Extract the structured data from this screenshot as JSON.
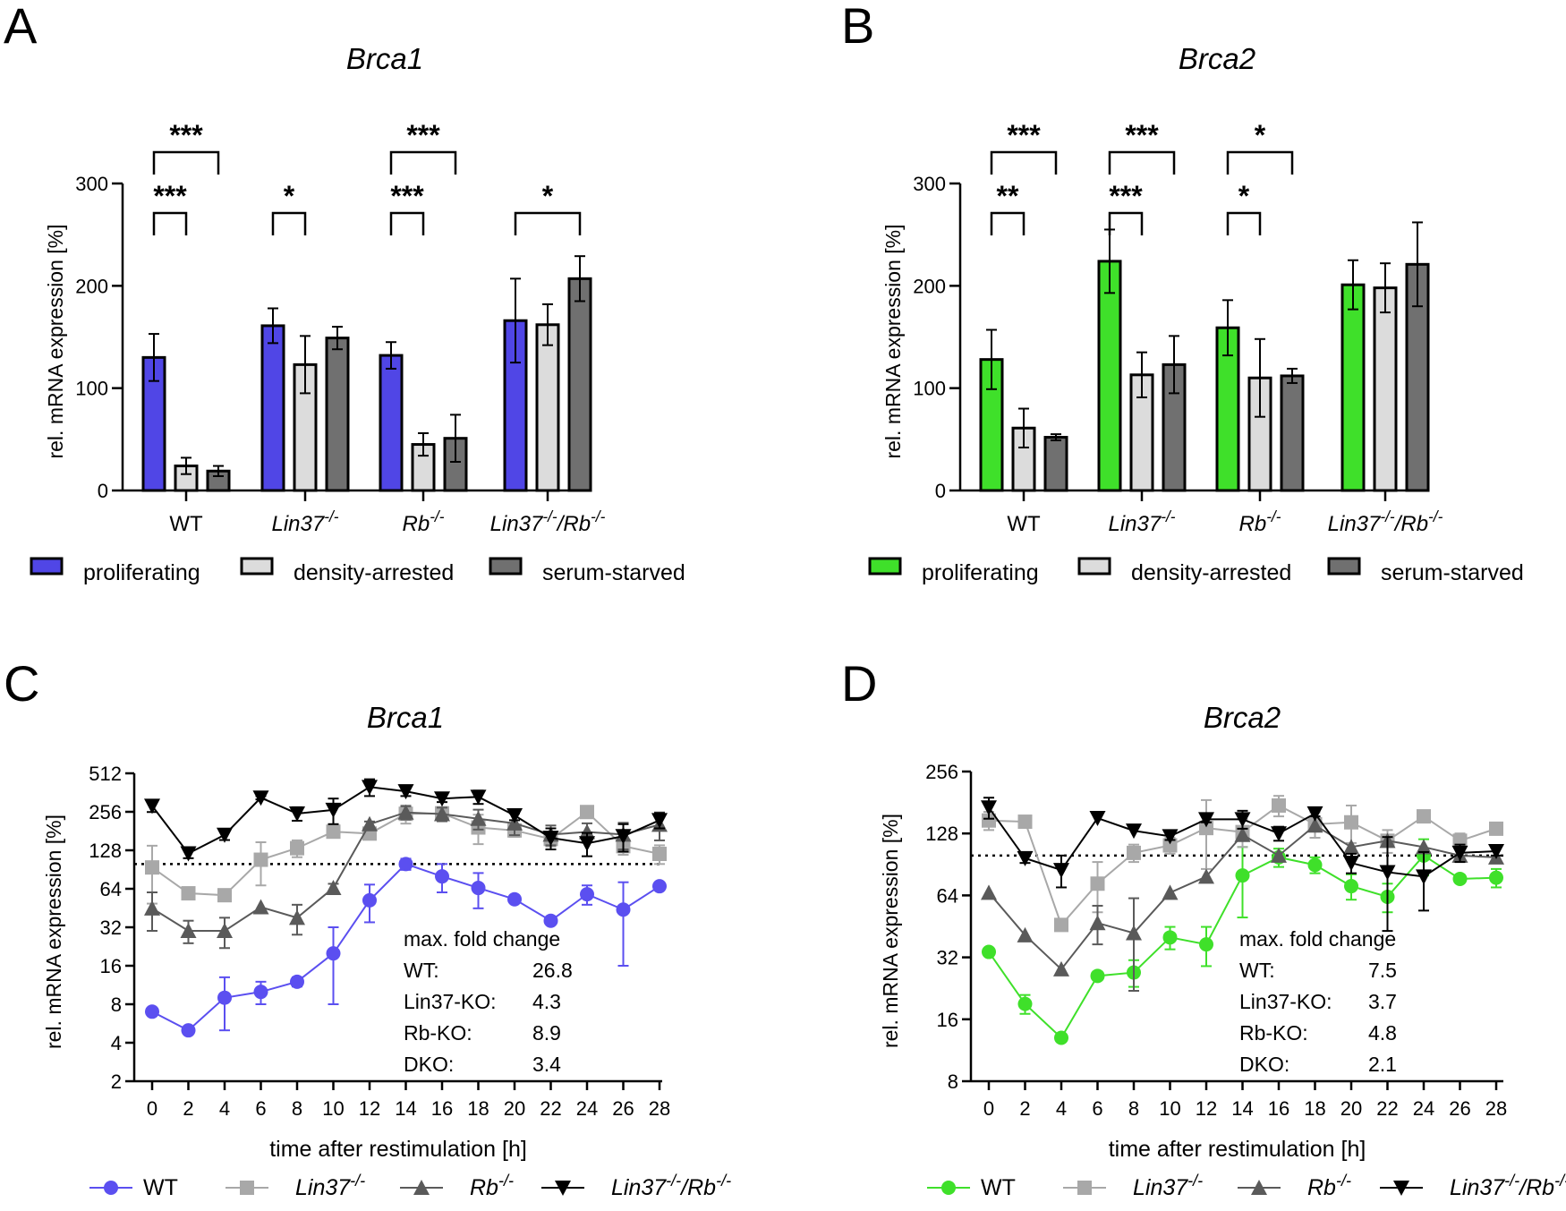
{
  "panels": [
    {
      "letter": "A",
      "chart_data": {
        "type": "bar",
        "title": "Brca1",
        "ylabel": "rel. mRNA expression [%]",
        "xlabel": "",
        "ylim": [
          0,
          300
        ],
        "yticks": [
          "0",
          "100",
          "200",
          "300"
        ],
        "categories": [
          "WT",
          "Lin37",
          "Rb",
          "Lin37/Rb"
        ],
        "category_labels": [
          {
            "base": "WT",
            "sup": ""
          },
          {
            "base": "Lin37",
            "sup": "-/-"
          },
          {
            "base": "Rb",
            "sup": "-/-"
          },
          {
            "base": "Lin37",
            "sup": "-/-",
            "base2": "/Rb",
            "sup2": "-/-"
          }
        ],
        "series": [
          {
            "name": "proliferating",
            "color": "#5046e6",
            "values": [
              130,
              161,
              132,
              166
            ],
            "errors": [
              23,
              17,
              13,
              41
            ]
          },
          {
            "name": "density-arrested",
            "color": "#dcdcdc",
            "values": [
              24,
              123,
              45,
              162
            ],
            "errors": [
              8,
              28,
              11,
              20
            ]
          },
          {
            "name": "serum-starved",
            "color": "#707070",
            "values": [
              19,
              149,
              51,
              207
            ],
            "errors": [
              5,
              11,
              23,
              22
            ]
          }
        ],
        "significance": [
          {
            "group": 0,
            "from": 0,
            "to": 2,
            "label": "***",
            "level": 2
          },
          {
            "group": 0,
            "from": 0,
            "to": 1,
            "label": "***",
            "level": 1
          },
          {
            "group": 1,
            "from": 0,
            "to": 1,
            "label": "*",
            "level": 1
          },
          {
            "group": 2,
            "from": 0,
            "to": 2,
            "label": "***",
            "level": 2
          },
          {
            "group": 2,
            "from": 0,
            "to": 1,
            "label": "***",
            "level": 1
          },
          {
            "group": 3,
            "from": 0,
            "to": 2,
            "label": "*",
            "level": 1
          }
        ]
      }
    },
    {
      "letter": "B",
      "chart_data": {
        "type": "bar",
        "title": "Brca2",
        "ylabel": "rel. mRNA expression [%]",
        "xlabel": "",
        "ylim": [
          0,
          300
        ],
        "yticks": [
          "0",
          "100",
          "200",
          "300"
        ],
        "categories": [
          "WT",
          "Lin37",
          "Rb",
          "Lin37/Rb"
        ],
        "category_labels": [
          {
            "base": "WT",
            "sup": ""
          },
          {
            "base": "Lin37",
            "sup": "-/-"
          },
          {
            "base": "Rb",
            "sup": "-/-"
          },
          {
            "base": "Lin37",
            "sup": "-/-",
            "base2": "/Rb",
            "sup2": "-/-"
          }
        ],
        "series": [
          {
            "name": "proliferating",
            "color": "#3fe02a",
            "values": [
              128,
              224,
              159,
              201
            ],
            "errors": [
              29,
              31,
              27,
              24
            ]
          },
          {
            "name": "density-arrested",
            "color": "#dcdcdc",
            "values": [
              61,
              113,
              110,
              198
            ],
            "errors": [
              19,
              22,
              38,
              24
            ]
          },
          {
            "name": "serum-starved",
            "color": "#707070",
            "values": [
              52,
              123,
              112,
              221
            ],
            "errors": [
              3,
              28,
              7,
              41
            ]
          }
        ],
        "significance": [
          {
            "group": 0,
            "from": 0,
            "to": 2,
            "label": "***",
            "level": 2
          },
          {
            "group": 0,
            "from": 0,
            "to": 1,
            "label": "**",
            "level": 1
          },
          {
            "group": 1,
            "from": 0,
            "to": 2,
            "label": "***",
            "level": 2
          },
          {
            "group": 1,
            "from": 0,
            "to": 1,
            "label": "***",
            "level": 1
          },
          {
            "group": 2,
            "from": 0,
            "to": 2,
            "label": "*",
            "level": 2
          },
          {
            "group": 2,
            "from": 0,
            "to": 1,
            "label": "*",
            "level": 1
          }
        ]
      }
    },
    {
      "letter": "C",
      "chart_data": {
        "type": "line",
        "title": "Brca1",
        "ylabel": "rel. mRNA expression [%]",
        "xlabel": "time after restimulation [h]",
        "yscale": "log2",
        "ylim": [
          2,
          512
        ],
        "yticks": [
          2,
          4,
          8,
          16,
          32,
          64,
          128,
          256,
          512
        ],
        "x": [
          0,
          2,
          4,
          6,
          8,
          10,
          12,
          14,
          16,
          18,
          20,
          22,
          24,
          26,
          28
        ],
        "reference_line": 100,
        "series": [
          {
            "name": "WT",
            "label_base": "WT",
            "label_sup": "",
            "marker": "circle",
            "color": "#5b4ff0",
            "values": [
              7,
              5,
              9,
              10,
              12,
              20,
              52,
              100,
              80,
              65,
              53,
              36,
              58,
              44,
              67
            ],
            "errors": [
              0,
              0,
              4,
              2,
              1,
              12,
              17,
              10,
              20,
              20,
              0,
              0,
              10,
              28,
              0
            ]
          },
          {
            "name": "Lin37-/-",
            "label_base": "Lin37",
            "label_sup": "-/-",
            "marker": "square",
            "color": "#a8a8a8",
            "values": [
              94,
              59,
              57,
              108,
              133,
              179,
              173,
              247,
              249,
              193,
              183,
              157,
              255,
              138,
              120
            ],
            "errors": [
              45,
              5,
              5,
              40,
              20,
              10,
              10,
              40,
              30,
              50,
              20,
              20,
              0,
              20,
              20
            ]
          },
          {
            "name": "Rb-/-",
            "label_base": "Rb",
            "label_sup": "-/-",
            "marker": "triangle-up",
            "color": "#5a5a5a",
            "values": [
              45,
              30,
              30,
              46,
              38,
              65,
              205,
              253,
              246,
              226,
              208,
              170,
              178,
              170,
              203
            ],
            "errors": [
              15,
              6,
              8,
              0,
              10,
              5,
              10,
              30,
              30,
              40,
              40,
              30,
              30,
              40,
              50
            ]
          },
          {
            "name": "Lin37-/-/Rb-/-",
            "label_base": "Lin37",
            "label_sup": "-/-",
            "label_base2": "/Rb",
            "label_sup2": "-/-",
            "marker": "triangle-down",
            "color": "#000000",
            "values": [
              285,
              121,
              169,
              330,
              248,
              265,
              400,
              370,
              325,
              335,
              240,
              160,
              145,
              165,
              220
            ],
            "errors": [
              30,
              10,
              15,
              10,
              30,
              60,
              60,
              30,
              20,
              40,
              20,
              30,
              30,
              40,
              30
            ]
          }
        ],
        "annotation": {
          "heading": "max. fold change",
          "rows": [
            [
              "WT:",
              "26.8"
            ],
            [
              "Lin37-KO:",
              "4.3"
            ],
            [
              "Rb-KO:",
              "8.9"
            ],
            [
              "DKO:",
              "3.4"
            ]
          ]
        }
      }
    },
    {
      "letter": "D",
      "chart_data": {
        "type": "line",
        "title": "Brca2",
        "ylabel": "rel. mRNA expression [%]",
        "xlabel": "time after restimulation [h]",
        "yscale": "log2",
        "ylim": [
          8,
          256
        ],
        "yticks": [
          8,
          16,
          32,
          64,
          128,
          256
        ],
        "x": [
          0,
          2,
          4,
          6,
          8,
          10,
          12,
          14,
          16,
          18,
          20,
          22,
          24,
          26,
          28
        ],
        "reference_line": 100,
        "series": [
          {
            "name": "WT",
            "label_base": "WT",
            "label_sup": "",
            "marker": "circle",
            "color": "#3fe02a",
            "values": [
              34,
              19,
              13,
              26,
              27,
              40,
              37,
              80,
              98,
              90,
              71,
              63,
              100,
              77,
              78
            ],
            "errors": [
              0,
              2,
              0,
              0,
              4,
              5,
              8,
              30,
              10,
              8,
              10,
              10,
              20,
              0,
              8
            ]
          },
          {
            "name": "Lin37-/-",
            "label_base": "Lin37",
            "label_sup": "-/-",
            "marker": "square",
            "color": "#a8a8a8",
            "values": [
              148,
              146,
              46,
              73,
              103,
              112,
              136,
              130,
              175,
              142,
              145,
              118,
              155,
              118,
              135
            ],
            "errors": [
              15,
              0,
              0,
              20,
              10,
              10,
              50,
              20,
              20,
              20,
              30,
              15,
              0,
              10,
              0
            ]
          },
          {
            "name": "Rb-/-",
            "label_base": "Rb",
            "label_sup": "-/-",
            "marker": "triangle-up",
            "color": "#5a5a5a",
            "values": [
              66,
              41,
              28,
              47,
              42,
              66,
              79,
              126,
              100,
              140,
              110,
              118,
              110,
              100,
              98
            ],
            "errors": [
              0,
              0,
              0,
              10,
              20,
              0,
              0,
              0,
              0,
              0,
              0,
              0,
              0,
              0,
              0
            ]
          },
          {
            "name": "Lin37-/-/Rb-/-",
            "label_base": "Lin37",
            "label_sup": "-/-",
            "label_base2": "/Rb",
            "label_sup2": "-/-",
            "marker": "triangle-down",
            "color": "#000000",
            "values": [
              171,
              97,
              85,
              152,
              132,
              124,
              150,
              150,
              128,
              160,
              92,
              83,
              79,
              103,
              105
            ],
            "errors": [
              20,
              5,
              15,
              0,
              0,
              5,
              5,
              15,
              10,
              5,
              10,
              40,
              25,
              10,
              5
            ]
          }
        ],
        "annotation": {
          "heading": "max. fold change",
          "rows": [
            [
              "WT:",
              "7.5"
            ],
            [
              "Lin37-KO:",
              "3.7"
            ],
            [
              "Rb-KO:",
              "4.8"
            ],
            [
              "DKO:",
              "2.1"
            ]
          ]
        }
      }
    }
  ]
}
